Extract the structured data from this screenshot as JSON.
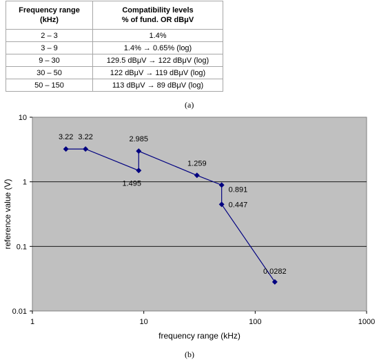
{
  "table": {
    "headers": [
      "Frequency range\n(kHz)",
      "Compatibility levels\n% of fund. OR dBμV"
    ],
    "rows": [
      [
        "2 – 3",
        "1.4%"
      ],
      [
        "3 – 9",
        "1.4% → 0.65% (log)"
      ],
      [
        "9 – 30",
        "129.5 dBμV → 122 dBμV (log)"
      ],
      [
        "30 – 50",
        "122 dBμV → 119 dBμV (log)"
      ],
      [
        "50 – 150",
        "113 dBμV → 89 dBμV (log)"
      ]
    ]
  },
  "captions": {
    "a": "(a)",
    "b": "(b)"
  },
  "chart_data": {
    "type": "line",
    "xlabel": "frequency range (kHz)",
    "ylabel": "reference value (V)",
    "xscale": "log",
    "yscale": "log",
    "xlim": [
      1,
      1000
    ],
    "ylim": [
      0.01,
      10
    ],
    "x_ticks": [
      "1",
      "10",
      "100",
      "1000"
    ],
    "y_ticks": [
      "0.01",
      "0.1",
      "1",
      "10"
    ],
    "grid": "horizontal",
    "plot_background": "#c0c0c0",
    "series_color": "#000080",
    "points": [
      {
        "x": 2,
        "y": 3.22,
        "label": "3.22"
      },
      {
        "x": 3,
        "y": 3.22,
        "label": "3.22"
      },
      {
        "x": 9,
        "y": 1.495,
        "label": "1.495"
      },
      {
        "x": 9,
        "y": 2.985,
        "label": "2.985"
      },
      {
        "x": 30,
        "y": 1.259,
        "label": "1.259"
      },
      {
        "x": 50,
        "y": 0.891,
        "label": "0.891"
      },
      {
        "x": 50,
        "y": 0.447,
        "label": "0.447"
      },
      {
        "x": 150,
        "y": 0.0282,
        "label": "0.0282"
      }
    ]
  }
}
